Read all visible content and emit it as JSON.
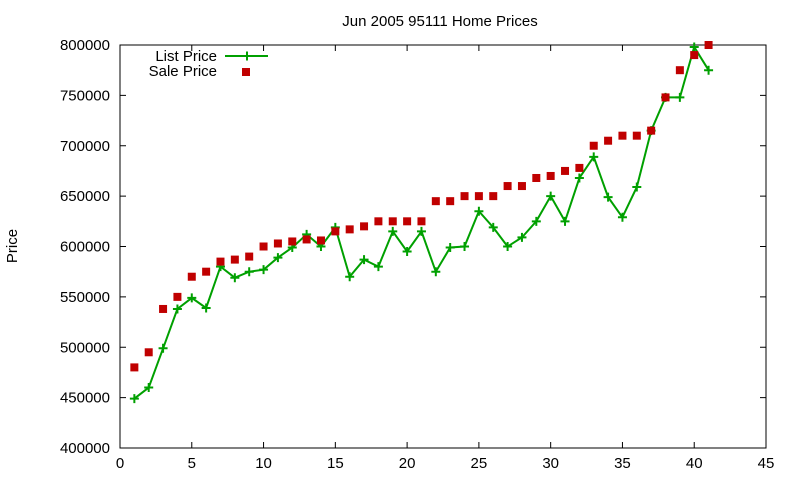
{
  "chart_data": {
    "type": "line",
    "title": "Jun 2005 95111 Home Prices",
    "xlabel": "",
    "ylabel": "Price",
    "xlim": [
      0,
      45
    ],
    "ylim": [
      400000,
      800000
    ],
    "xticks": [
      "0",
      "5",
      "10",
      "15",
      "20",
      "25",
      "30",
      "35",
      "40",
      "45"
    ],
    "yticks": [
      "400000",
      "450000",
      "500000",
      "550000",
      "600000",
      "650000",
      "700000",
      "750000",
      "800000"
    ],
    "grid": false,
    "legend_position": "top-left",
    "series": [
      {
        "name": "List Price",
        "style": "line with plus markers",
        "color": "#00a000",
        "x": [
          1,
          2,
          3,
          4,
          5,
          6,
          7,
          8,
          9,
          10,
          11,
          12,
          13,
          14,
          15,
          16,
          17,
          18,
          19,
          20,
          21,
          22,
          23,
          24,
          25,
          26,
          27,
          28,
          29,
          30,
          31,
          32,
          33,
          34,
          35,
          36,
          37,
          38,
          39,
          40,
          41
        ],
        "y": [
          449000,
          460000,
          499000,
          538000,
          549000,
          539000,
          580000,
          569000,
          575000,
          577000,
          589000,
          599000,
          612000,
          600000,
          619000,
          570000,
          587000,
          580000,
          615000,
          595000,
          615000,
          575000,
          599000,
          600000,
          635000,
          619000,
          600000,
          609000,
          625000,
          650000,
          625000,
          668000,
          689000,
          649000,
          629000,
          659000,
          715000,
          748000,
          748000,
          798000,
          775000
        ]
      },
      {
        "name": "Sale Price",
        "style": "square markers",
        "color": "#c00000",
        "x": [
          1,
          2,
          3,
          4,
          5,
          6,
          7,
          8,
          9,
          10,
          11,
          12,
          13,
          14,
          15,
          16,
          17,
          18,
          19,
          20,
          21,
          22,
          23,
          24,
          25,
          26,
          27,
          28,
          29,
          30,
          31,
          32,
          33,
          34,
          35,
          36,
          37,
          38,
          39,
          40,
          41
        ],
        "y": [
          480000,
          495000,
          538000,
          550000,
          570000,
          575000,
          585000,
          587000,
          590000,
          600000,
          603000,
          605000,
          607000,
          606000,
          615000,
          617000,
          620000,
          625000,
          625000,
          625000,
          625000,
          645000,
          645000,
          650000,
          650000,
          650000,
          660000,
          660000,
          668000,
          670000,
          675000,
          678000,
          700000,
          705000,
          710000,
          710000,
          715000,
          748000,
          775000,
          790000,
          800000
        ]
      }
    ]
  }
}
